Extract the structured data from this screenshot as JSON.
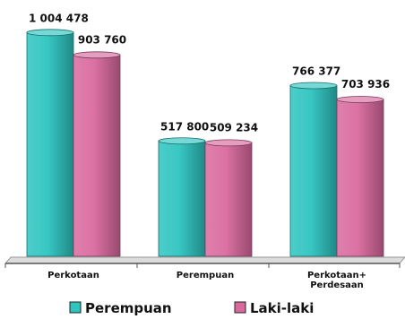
{
  "chart_data": {
    "type": "bar",
    "categories": [
      "Perkotaan",
      "Perempuan",
      "Perkotaan+\nPerdesaan"
    ],
    "series": [
      {
        "name": "Perempuan",
        "values": [
          1004478,
          517800,
          766377
        ],
        "labels": [
          "1 004 478",
          "517 800",
          "766 377"
        ],
        "color": "#2EC4C0"
      },
      {
        "name": "Laki-laki",
        "values": [
          903760,
          509234,
          703936
        ],
        "labels": [
          "903 760",
          "509 234",
          "703 936"
        ],
        "color": "#D96A9E"
      }
    ],
    "ylim": [
      0,
      1070000
    ],
    "grid": false,
    "legend_position": "bottom"
  }
}
